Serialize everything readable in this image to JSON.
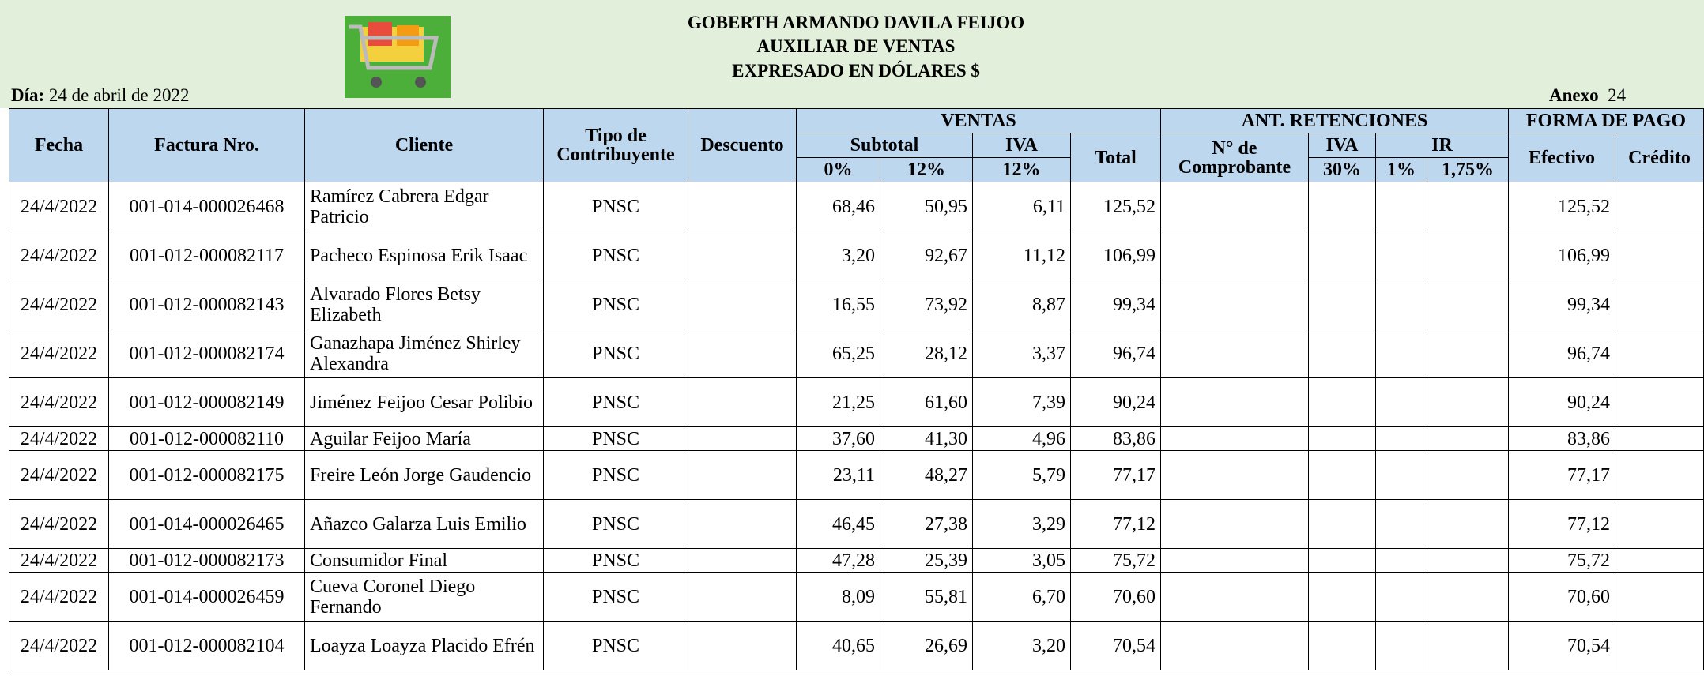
{
  "header": {
    "title_lines": [
      "GOBERTH ARMANDO DAVILA FEIJOO",
      "AUXILIAR DE VENTAS",
      "EXPRESADO EN DÓLARES $"
    ],
    "day_label": "Día:",
    "day": "24 de abril de 2022",
    "annex_label": "Anexo",
    "annex": "24"
  },
  "table": {
    "headers": {
      "fecha": "Fecha",
      "factura": "Factura Nro.",
      "cliente": "Cliente",
      "tipo": "Tipo de Contribuyente",
      "descuento": "Descuento",
      "ventas": "VENTAS",
      "retenciones": "ANT. RETENCIONES",
      "forma_pago": "FORMA DE PAGO",
      "subtotal": "Subtotal",
      "iva": "IVA",
      "total": "Total",
      "comprobante": "N° de Comprobante",
      "ret_iva": "IVA",
      "ir": "IR",
      "efectivo": "Efectivo",
      "credito": "Crédito",
      "sub_0": "0%",
      "sub_12": "12%",
      "iva_12": "12%",
      "ret_iva_30": "30%",
      "ir_1": "1%",
      "ir_175": "1,75%"
    },
    "rows": [
      {
        "fecha": "24/4/2022",
        "factura": "001-014-000026468",
        "cliente": "Ramírez Cabrera Edgar Patricio",
        "tipo": "PNSC",
        "subtotal_0": "68,46",
        "subtotal_12": "50,95",
        "iva_12": "6,11",
        "total": "125,52",
        "efectivo": "125,52"
      },
      {
        "fecha": "24/4/2022",
        "factura": "001-012-000082117",
        "cliente": "Pacheco Espinosa Erik Isaac",
        "tipo": "PNSC",
        "subtotal_0": "3,20",
        "subtotal_12": "92,67",
        "iva_12": "11,12",
        "total": "106,99",
        "efectivo": "106,99"
      },
      {
        "fecha": "24/4/2022",
        "factura": "001-012-000082143",
        "cliente": "Alvarado Flores Betsy Elizabeth",
        "tipo": "PNSC",
        "subtotal_0": "16,55",
        "subtotal_12": "73,92",
        "iva_12": "8,87",
        "total": "99,34",
        "efectivo": "99,34"
      },
      {
        "fecha": "24/4/2022",
        "factura": "001-012-000082174",
        "cliente": "Ganazhapa Jiménez Shirley Alexandra",
        "tipo": "PNSC",
        "subtotal_0": "65,25",
        "subtotal_12": "28,12",
        "iva_12": "3,37",
        "total": "96,74",
        "efectivo": "96,74"
      },
      {
        "fecha": "24/4/2022",
        "factura": "001-012-000082149",
        "cliente": "Jiménez Feijoo Cesar Polibio",
        "tipo": "PNSC",
        "subtotal_0": "21,25",
        "subtotal_12": "61,60",
        "iva_12": "7,39",
        "total": "90,24",
        "efectivo": "90,24"
      },
      {
        "fecha": "24/4/2022",
        "factura": "001-012-000082110",
        "cliente": "Aguilar Feijoo María",
        "tipo": "PNSC",
        "subtotal_0": "37,60",
        "subtotal_12": "41,30",
        "iva_12": "4,96",
        "total": "83,86",
        "efectivo": "83,86"
      },
      {
        "fecha": "24/4/2022",
        "factura": "001-012-000082175",
        "cliente": "Freire León Jorge Gaudencio",
        "tipo": "PNSC",
        "subtotal_0": "23,11",
        "subtotal_12": "48,27",
        "iva_12": "5,79",
        "total": "77,17",
        "efectivo": "77,17"
      },
      {
        "fecha": "24/4/2022",
        "factura": "001-014-000026465",
        "cliente": "Añazco Galarza Luis Emilio",
        "tipo": "PNSC",
        "subtotal_0": "46,45",
        "subtotal_12": "27,38",
        "iva_12": "3,29",
        "total": "77,12",
        "efectivo": "77,12"
      },
      {
        "fecha": "24/4/2022",
        "factura": "001-012-000082173",
        "cliente": "Consumidor Final",
        "tipo": "PNSC",
        "subtotal_0": "47,28",
        "subtotal_12": "25,39",
        "iva_12": "3,05",
        "total": "75,72",
        "efectivo": "75,72"
      },
      {
        "fecha": "24/4/2022",
        "factura": "001-014-000026459",
        "cliente": "Cueva Coronel Diego Fernando",
        "tipo": "PNSC",
        "subtotal_0": "8,09",
        "subtotal_12": "55,81",
        "iva_12": "6,70",
        "total": "70,60",
        "efectivo": "70,60"
      },
      {
        "fecha": "24/4/2022",
        "factura": "001-012-000082104",
        "cliente": "Loayza Loayza Placido Efrén",
        "tipo": "PNSC",
        "subtotal_0": "40,65",
        "subtotal_12": "26,69",
        "iva_12": "3,20",
        "total": "70,54",
        "efectivo": "70,54"
      }
    ]
  }
}
